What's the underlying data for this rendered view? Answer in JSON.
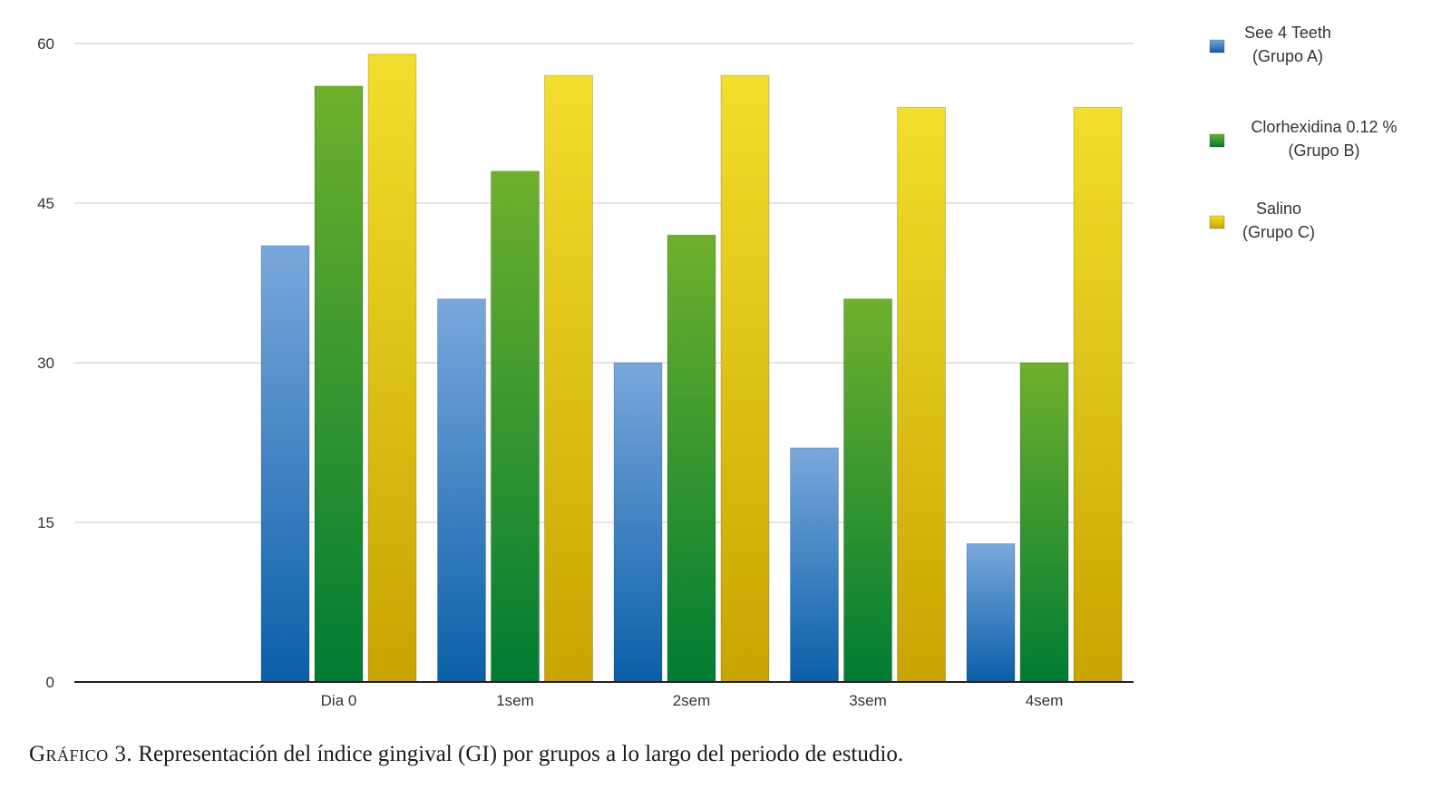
{
  "chart_data": {
    "type": "bar",
    "categories": [
      "Dia 0",
      "1sem",
      "2sem",
      "3sem",
      "4sem"
    ],
    "series": [
      {
        "name": "See 4 Teeth (Grupo A)",
        "legend_lines": [
          "See 4 Teeth",
          "(Grupo A)"
        ],
        "values": [
          41,
          36,
          30,
          22,
          13
        ],
        "color_top": "#7aa8dc",
        "color_bottom": "#0a5fa8"
      },
      {
        "name": "Clorhexidina 0.12 % (Grupo B)",
        "legend_lines": [
          "Clorhexidina 0.12 %",
          "(Grupo B)"
        ],
        "values": [
          56,
          48,
          42,
          36,
          30
        ],
        "color_top": "#6fb02c",
        "color_bottom": "#007c33"
      },
      {
        "name": "Salino (Grupo C)",
        "legend_lines": [
          "Salino",
          "(Grupo C)"
        ],
        "values": [
          59,
          57,
          57,
          54,
          54
        ],
        "color_top": "#f2de2e",
        "color_bottom": "#c9a400"
      }
    ],
    "y_ticks": [
      "0",
      "15",
      "30",
      "45",
      "60"
    ],
    "ylim": [
      0,
      60
    ],
    "grid": true,
    "legend_position": "right",
    "title": "",
    "xlabel": "",
    "ylabel": ""
  },
  "caption": {
    "lead": "Gráfico 3.",
    "text": " Representación del índice gingival (GI) por grupos a lo largo del periodo de estudio."
  }
}
